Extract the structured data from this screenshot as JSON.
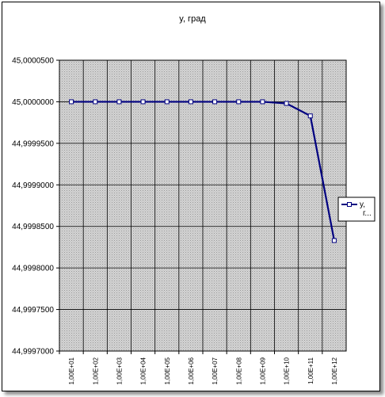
{
  "chart_data": {
    "type": "line",
    "title": "y, град",
    "categories": [
      "1,00E+01",
      "1,00E+02",
      "1,00E+03",
      "1,00E+04",
      "1,00E+05",
      "1,00E+06",
      "1,00E+07",
      "1,00E+08",
      "1,00E+09",
      "1,00E+10",
      "1,00E+11",
      "1,00E+12"
    ],
    "series": [
      {
        "name": "y, г...",
        "values": [
          45.0,
          45.0,
          45.0,
          45.0,
          45.0,
          45.0,
          45.0,
          45.0,
          45.0,
          44.999998,
          44.999983,
          44.999833
        ]
      }
    ],
    "yticks": [
      "45,0000500",
      "45,0000000",
      "44,9999500",
      "44,9999000",
      "44,9998500",
      "44,9998000",
      "44,9997500",
      "44,9997000"
    ],
    "ylim": [
      44.9997,
      45.00005
    ],
    "grid": true,
    "legend": "right",
    "colors": {
      "series": "#000080",
      "plot_background": "#c8c8c8",
      "grid": "#000000"
    }
  }
}
